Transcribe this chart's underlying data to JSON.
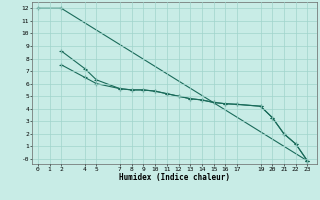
{
  "title": "",
  "xlabel": "Humidex (Indice chaleur)",
  "bg_color": "#c8ece6",
  "grid_color": "#a0d4cc",
  "line_color": "#1a6b5a",
  "xlim": [
    -0.5,
    23.8
  ],
  "ylim": [
    -0.4,
    12.5
  ],
  "xticks": [
    0,
    1,
    2,
    4,
    5,
    7,
    8,
    9,
    10,
    11,
    12,
    13,
    14,
    15,
    16,
    17,
    19,
    20,
    21,
    22,
    23
  ],
  "yticks": [
    0,
    1,
    2,
    3,
    4,
    5,
    6,
    7,
    8,
    9,
    10,
    11,
    12
  ],
  "ytick_labels": [
    "-0",
    "1",
    "2",
    "3",
    "4",
    "5",
    "6",
    "7",
    "8",
    "9",
    "10",
    "11",
    "12"
  ],
  "line1_x": [
    0,
    2,
    23
  ],
  "line1_y": [
    12,
    12,
    -0.15
  ],
  "line2_x": [
    2,
    4,
    5,
    7,
    8,
    9,
    10,
    11,
    12,
    13,
    14,
    15,
    16,
    17,
    19,
    20,
    21,
    22,
    23
  ],
  "line2_y": [
    8.6,
    7.2,
    6.3,
    5.6,
    5.5,
    5.5,
    5.4,
    5.2,
    5.0,
    4.8,
    4.7,
    4.5,
    4.4,
    4.35,
    4.2,
    3.3,
    2.0,
    1.2,
    -0.15
  ],
  "line3_x": [
    2,
    4,
    5,
    7,
    8,
    9,
    10,
    11,
    12,
    13,
    14,
    15,
    16,
    17,
    19,
    20,
    21,
    22,
    23
  ],
  "line3_y": [
    7.5,
    6.5,
    6.0,
    5.6,
    5.5,
    5.5,
    5.4,
    5.2,
    5.0,
    4.8,
    4.7,
    4.5,
    4.4,
    4.35,
    4.2,
    3.3,
    2.0,
    1.2,
    -0.15
  ]
}
